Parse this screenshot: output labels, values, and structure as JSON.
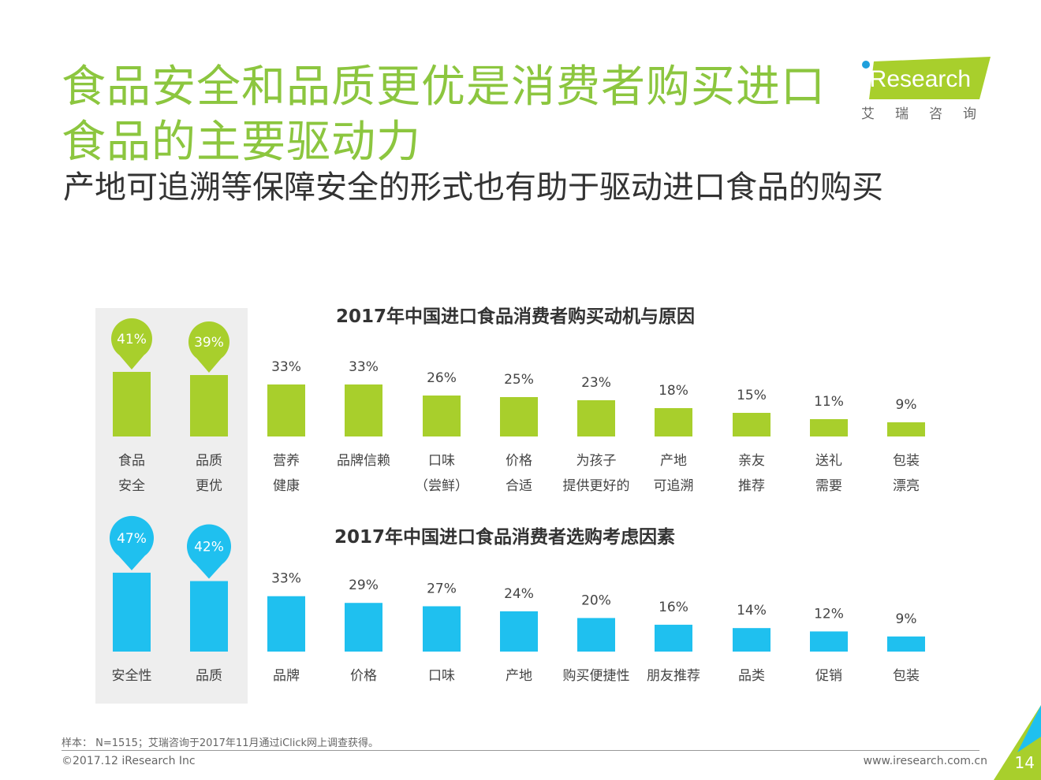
{
  "header": {
    "title_line1": "食品安全和品质更优是消费者购买进口",
    "title_line2": "食品的主要驱动力",
    "subtitle": "产地可追溯等保障安全的形式也有助于驱动进口食品的购买"
  },
  "logo": {
    "text": "iResearch",
    "cn": "艾瑞咨询"
  },
  "colors": {
    "title_green": "#8cc63f",
    "bar_green": "#a8cf2c",
    "bar_blue": "#1fc0ef",
    "panel_gray": "#eeeeee"
  },
  "chart_data": [
    {
      "type": "bar",
      "title": "2017年中国进口食品消费者购买动机与原因",
      "categories": [
        [
          "食品",
          "安全"
        ],
        [
          "品质",
          "更优"
        ],
        [
          "营养",
          "健康"
        ],
        [
          "品牌信赖",
          ""
        ],
        [
          "口味",
          "（尝鲜）"
        ],
        [
          "价格",
          "合适"
        ],
        [
          "为孩子",
          "提供更好的"
        ],
        [
          "产地",
          "可追溯"
        ],
        [
          "亲友",
          "推荐"
        ],
        [
          "送礼",
          "需要"
        ],
        [
          "包装",
          "漂亮"
        ]
      ],
      "values": [
        41,
        39,
        33,
        33,
        26,
        25,
        23,
        18,
        15,
        11,
        9
      ],
      "value_labels": [
        "41%",
        "39%",
        "33%",
        "33%",
        "26%",
        "25%",
        "23%",
        "18%",
        "15%",
        "11%",
        "9%"
      ],
      "highlighted": [
        0,
        1
      ],
      "unit": "%"
    },
    {
      "type": "bar",
      "title": "2017年中国进口食品消费者选购考虑因素",
      "categories": [
        [
          "安全性"
        ],
        [
          "品质"
        ],
        [
          "品牌"
        ],
        [
          "价格"
        ],
        [
          "口味"
        ],
        [
          "产地"
        ],
        [
          "购买便捷性"
        ],
        [
          "朋友推荐"
        ],
        [
          "品类"
        ],
        [
          "促销"
        ],
        [
          "包装"
        ]
      ],
      "values": [
        47,
        42,
        33,
        29,
        27,
        24,
        20,
        16,
        14,
        12,
        9
      ],
      "value_labels": [
        "47%",
        "42%",
        "33%",
        "29%",
        "27%",
        "24%",
        "20%",
        "16%",
        "14%",
        "12%",
        "9%"
      ],
      "highlighted": [
        0,
        1
      ],
      "unit": "%"
    }
  ],
  "footer": {
    "note": "样本： N=1515；艾瑞咨询于2017年11月通过iClick网上调查获得。",
    "copyright": "©2017.12 iResearch Inc",
    "website": "www.iresearch.com.cn",
    "page": "14"
  }
}
